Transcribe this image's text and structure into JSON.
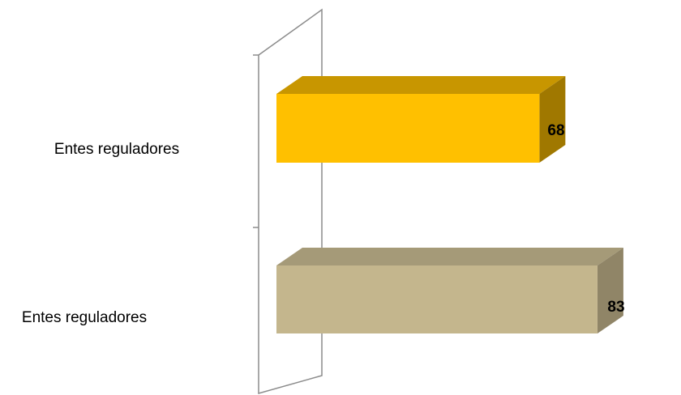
{
  "chart_data": {
    "type": "bar",
    "orientation": "horizontal",
    "style": "3d",
    "categories": [
      "Entes reguladores",
      "Entes reguladores"
    ],
    "values": [
      68,
      83
    ],
    "title": "",
    "xlabel": "",
    "ylabel": "",
    "grid": false,
    "legend": "none",
    "bar_colors": [
      {
        "front": "#ffc000",
        "top": "#c89600",
        "side": "#a07800"
      },
      {
        "front": "#c4b68d",
        "top": "#a59a78",
        "side": "#908567"
      }
    ],
    "wall_color": "#8c8c8c"
  }
}
